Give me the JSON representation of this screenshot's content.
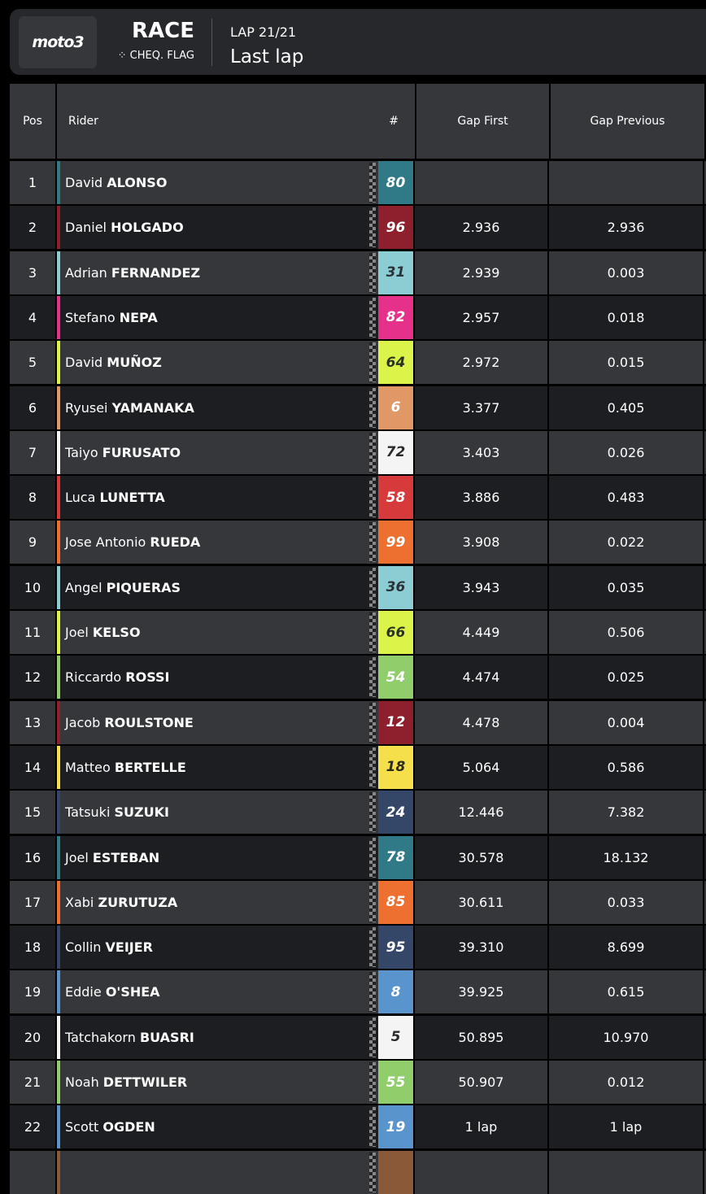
{
  "header": {
    "logo": "moto3",
    "session": "RACE",
    "flag_status": "CHEQ. FLAG",
    "lap": "LAP 21/21",
    "lap_status": "Last lap"
  },
  "columns": {
    "pos": "Pos",
    "rider": "Rider",
    "number": "#",
    "gap_first": "Gap First",
    "gap_previous": "Gap Previous"
  },
  "rows": [
    {
      "pos": "1",
      "first": "David",
      "last": "ALONSO",
      "num": "80",
      "color": "#2f7a86",
      "text": "#ffffff",
      "gap_first": "",
      "gap_prev": ""
    },
    {
      "pos": "2",
      "first": "Daniel",
      "last": "HOLGADO",
      "num": "96",
      "color": "#8e1f2d",
      "text": "#ffffff",
      "gap_first": "2.936",
      "gap_prev": "2.936"
    },
    {
      "pos": "3",
      "first": "Adrian",
      "last": "FERNANDEZ",
      "num": "31",
      "color": "#8ccdd3",
      "text": "#2a3338",
      "gap_first": "2.939",
      "gap_prev": "0.003"
    },
    {
      "pos": "4",
      "first": "Stefano",
      "last": "NEPA",
      "num": "82",
      "color": "#e5318a",
      "text": "#ffffff",
      "gap_first": "2.957",
      "gap_prev": "0.018"
    },
    {
      "pos": "5",
      "first": "David",
      "last": "MUÑOZ",
      "num": "64",
      "color": "#dcf44a",
      "text": "#2a3320",
      "gap_first": "2.972",
      "gap_prev": "0.015"
    },
    {
      "pos": "6",
      "first": "Ryusei",
      "last": "YAMANAKA",
      "num": "6",
      "color": "#e09966",
      "text": "#ffffff",
      "gap_first": "3.377",
      "gap_prev": "0.405"
    },
    {
      "pos": "7",
      "first": "Taiyo",
      "last": "FURUSATO",
      "num": "72",
      "color": "#f4f4f4",
      "text": "#2a2a2a",
      "gap_first": "3.403",
      "gap_prev": "0.026"
    },
    {
      "pos": "8",
      "first": "Luca",
      "last": "LUNETTA",
      "num": "58",
      "color": "#d63a3a",
      "text": "#ffffff",
      "gap_first": "3.886",
      "gap_prev": "0.483"
    },
    {
      "pos": "9",
      "first": "Jose Antonio",
      "last": "RUEDA",
      "num": "99",
      "color": "#ee7030",
      "text": "#ffffff",
      "gap_first": "3.908",
      "gap_prev": "0.022"
    },
    {
      "pos": "10",
      "first": "Angel",
      "last": "PIQUERAS",
      "num": "36",
      "color": "#8ccdd3",
      "text": "#2a3338",
      "gap_first": "3.943",
      "gap_prev": "0.035"
    },
    {
      "pos": "11",
      "first": "Joel",
      "last": "KELSO",
      "num": "66",
      "color": "#dcf44a",
      "text": "#2a3320",
      "gap_first": "4.449",
      "gap_prev": "0.506"
    },
    {
      "pos": "12",
      "first": "Riccardo",
      "last": "ROSSI",
      "num": "54",
      "color": "#8fce6a",
      "text": "#ffffff",
      "gap_first": "4.474",
      "gap_prev": "0.025"
    },
    {
      "pos": "13",
      "first": "Jacob",
      "last": "ROULSTONE",
      "num": "12",
      "color": "#8e1f2d",
      "text": "#ffffff",
      "gap_first": "4.478",
      "gap_prev": "0.004"
    },
    {
      "pos": "14",
      "first": "Matteo",
      "last": "BERTELLE",
      "num": "18",
      "color": "#f5df4a",
      "text": "#2a2a20",
      "gap_first": "5.064",
      "gap_prev": "0.586"
    },
    {
      "pos": "15",
      "first": "Tatsuki",
      "last": "SUZUKI",
      "num": "24",
      "color": "#354768",
      "text": "#ffffff",
      "gap_first": "12.446",
      "gap_prev": "7.382"
    },
    {
      "pos": "16",
      "first": "Joel",
      "last": "ESTEBAN",
      "num": "78",
      "color": "#2f7a86",
      "text": "#ffffff",
      "gap_first": "30.578",
      "gap_prev": "18.132"
    },
    {
      "pos": "17",
      "first": "Xabi",
      "last": "ZURUTUZA",
      "num": "85",
      "color": "#ee7030",
      "text": "#ffffff",
      "gap_first": "30.611",
      "gap_prev": "0.033"
    },
    {
      "pos": "18",
      "first": "Collin",
      "last": "VEIJER",
      "num": "95",
      "color": "#354768",
      "text": "#ffffff",
      "gap_first": "39.310",
      "gap_prev": "8.699"
    },
    {
      "pos": "19",
      "first": "Eddie",
      "last": "O'SHEA",
      "num": "8",
      "color": "#5a94cc",
      "text": "#ffffff",
      "gap_first": "39.925",
      "gap_prev": "0.615"
    },
    {
      "pos": "20",
      "first": "Tatchakorn",
      "last": "BUASRI",
      "num": "5",
      "color": "#f4f4f4",
      "text": "#2a2a2a",
      "gap_first": "50.895",
      "gap_prev": "10.970"
    },
    {
      "pos": "21",
      "first": "Noah",
      "last": "DETTWILER",
      "num": "55",
      "color": "#8fce6a",
      "text": "#ffffff",
      "gap_first": "50.907",
      "gap_prev": "0.012"
    },
    {
      "pos": "22",
      "first": "Scott",
      "last": "OGDEN",
      "num": "19",
      "color": "#5a94cc",
      "text": "#ffffff",
      "gap_first": "1 lap",
      "gap_prev": "1 lap"
    },
    {
      "pos": "",
      "first": "",
      "last": "",
      "num": "",
      "color": "#8a5a38",
      "text": "#ffffff",
      "gap_first": "",
      "gap_prev": ""
    }
  ]
}
